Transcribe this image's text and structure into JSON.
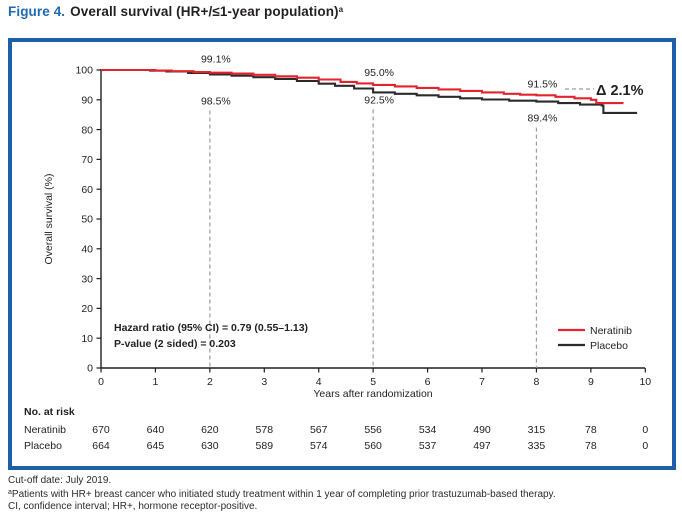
{
  "title": {
    "prefix": "Figure 4.",
    "main": "Overall survival (HR+/≤1-year population)",
    "superscript": "a"
  },
  "colors": {
    "frame_blue": "#1e5fa8",
    "title_blue": "#1e6ab1",
    "neratinib_red": "#e4232b",
    "placebo_black": "#2b2b2b",
    "dashed_gray": "#9c9c9c",
    "axis_black": "#231f20"
  },
  "chart_data": {
    "type": "line",
    "subtype": "kaplan-meier-step",
    "xlabel": "Years after randomization",
    "ylabel": "Overall survival (%)",
    "xlim": [
      0,
      10
    ],
    "ylim": [
      0,
      100
    ],
    "x_ticks": [
      0,
      1,
      2,
      3,
      4,
      5,
      6,
      7,
      8,
      9,
      10
    ],
    "y_ticks": [
      0,
      10,
      20,
      30,
      40,
      50,
      60,
      70,
      80,
      90,
      100
    ],
    "grid": false,
    "legend_position": "lower-right-inside",
    "series": [
      {
        "name": "Neratinib",
        "color": "#e4232b",
        "points": [
          [
            0,
            100
          ],
          [
            0.75,
            100
          ],
          [
            1,
            99.8
          ],
          [
            1.3,
            99.6
          ],
          [
            1.7,
            99.3
          ],
          [
            2,
            99.1
          ],
          [
            2.4,
            98.8
          ],
          [
            2.8,
            98.4
          ],
          [
            3.2,
            97.9
          ],
          [
            3.6,
            97.4
          ],
          [
            4,
            96.8
          ],
          [
            4.4,
            96.0
          ],
          [
            4.7,
            95.5
          ],
          [
            5,
            95.0
          ],
          [
            5.4,
            94.5
          ],
          [
            5.8,
            94.0
          ],
          [
            6.2,
            93.5
          ],
          [
            6.6,
            93.0
          ],
          [
            7,
            92.5
          ],
          [
            7.4,
            92.0
          ],
          [
            7.7,
            91.7
          ],
          [
            8,
            91.5
          ],
          [
            8.35,
            91.0
          ],
          [
            8.7,
            90.5
          ],
          [
            9.0,
            90.0
          ],
          [
            9.1,
            88.9
          ],
          [
            9.6,
            88.9
          ]
        ]
      },
      {
        "name": "Placebo",
        "color": "#2b2b2b",
        "points": [
          [
            0,
            100
          ],
          [
            0.6,
            100
          ],
          [
            0.9,
            99.8
          ],
          [
            1.2,
            99.5
          ],
          [
            1.6,
            99.0
          ],
          [
            2,
            98.5
          ],
          [
            2.4,
            98.1
          ],
          [
            2.8,
            97.6
          ],
          [
            3.2,
            97.0
          ],
          [
            3.6,
            96.3
          ],
          [
            4,
            95.4
          ],
          [
            4.3,
            94.7
          ],
          [
            4.65,
            93.8
          ],
          [
            5,
            92.5
          ],
          [
            5.4,
            92.0
          ],
          [
            5.8,
            91.5
          ],
          [
            6.2,
            91.0
          ],
          [
            6.6,
            90.5
          ],
          [
            7,
            90.1
          ],
          [
            7.5,
            89.7
          ],
          [
            8,
            89.4
          ],
          [
            8.4,
            88.9
          ],
          [
            8.8,
            88.4
          ],
          [
            9.2,
            88.1
          ],
          [
            9.23,
            85.6
          ],
          [
            9.85,
            85.6
          ]
        ]
      }
    ],
    "markers": [
      {
        "year": 2,
        "top_label": "99.1%",
        "bottom_label": "98.5%"
      },
      {
        "year": 5,
        "top_label": "95.0%",
        "bottom_label": "92.5%"
      },
      {
        "year": 8,
        "top_label": "91.5%",
        "bottom_label": "89.4%"
      }
    ],
    "delta_annotation": "Δ 2.1%",
    "stats": [
      "Hazard ratio (95% CI) = 0.79 (0.55–1.13)",
      "P-value (2 sided) = 0.203"
    ],
    "legend": [
      {
        "label": "Neratinib",
        "color": "#e4232b"
      },
      {
        "label": "Placebo",
        "color": "#2b2b2b"
      }
    ]
  },
  "risk_table": {
    "header": "No. at risk",
    "rows": [
      {
        "label": "Neratinib",
        "values": [
          "670",
          "640",
          "620",
          "578",
          "567",
          "556",
          "534",
          "490",
          "315",
          "78",
          "0"
        ]
      },
      {
        "label": "Placebo",
        "values": [
          "664",
          "645",
          "630",
          "589",
          "574",
          "560",
          "537",
          "497",
          "335",
          "78",
          "0"
        ]
      }
    ]
  },
  "footnotes": {
    "line1": "Cut-off date: July 2019.",
    "line2_sup": "a",
    "line2": "Patients with HR+ breast cancer who initiated study treatment within 1 year of completing prior trastuzumab-based therapy.",
    "line3": "CI, confidence interval; HR+, hormone receptor-positive."
  }
}
